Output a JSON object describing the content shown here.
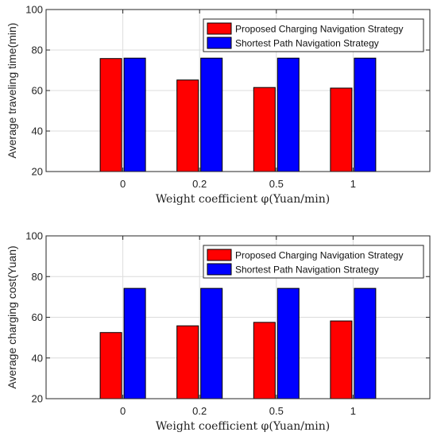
{
  "chart_data": [
    {
      "type": "bar",
      "categories": [
        "0",
        "0.2",
        "0.5",
        "1"
      ],
      "series": [
        {
          "name": "Proposed Charging Navigation Strategy",
          "values": [
            75.8,
            65.2,
            61.5,
            61.2
          ],
          "color": "#ff0000"
        },
        {
          "name": "Shortest Path Navigation Strategy",
          "values": [
            76.0,
            76.0,
            76.0,
            76.0
          ],
          "color": "#0000ff"
        }
      ],
      "title": "",
      "xlabel": "Weight coefficient φ(Yuan/min)",
      "ylabel": "Average traveling time(min)",
      "ylim": [
        20,
        100
      ],
      "yticks": [
        20,
        40,
        60,
        80,
        100
      ],
      "grid": true,
      "legend_position": "top-right"
    },
    {
      "type": "bar",
      "categories": [
        "0",
        "0.2",
        "0.5",
        "1"
      ],
      "series": [
        {
          "name": "Proposed Charging Navigation Strategy",
          "values": [
            52.5,
            55.8,
            57.5,
            58.2
          ],
          "color": "#ff0000"
        },
        {
          "name": "Shortest Path Navigation Strategy",
          "values": [
            74.2,
            74.2,
            74.2,
            74.2
          ],
          "color": "#0000ff"
        }
      ],
      "title": "",
      "xlabel": "Weight coefficient φ(Yuan/min)",
      "ylabel": "Average charging cost(Yuan)",
      "ylim": [
        20,
        100
      ],
      "yticks": [
        20,
        40,
        60,
        80,
        100
      ],
      "grid": true,
      "legend_position": "top-right"
    }
  ]
}
